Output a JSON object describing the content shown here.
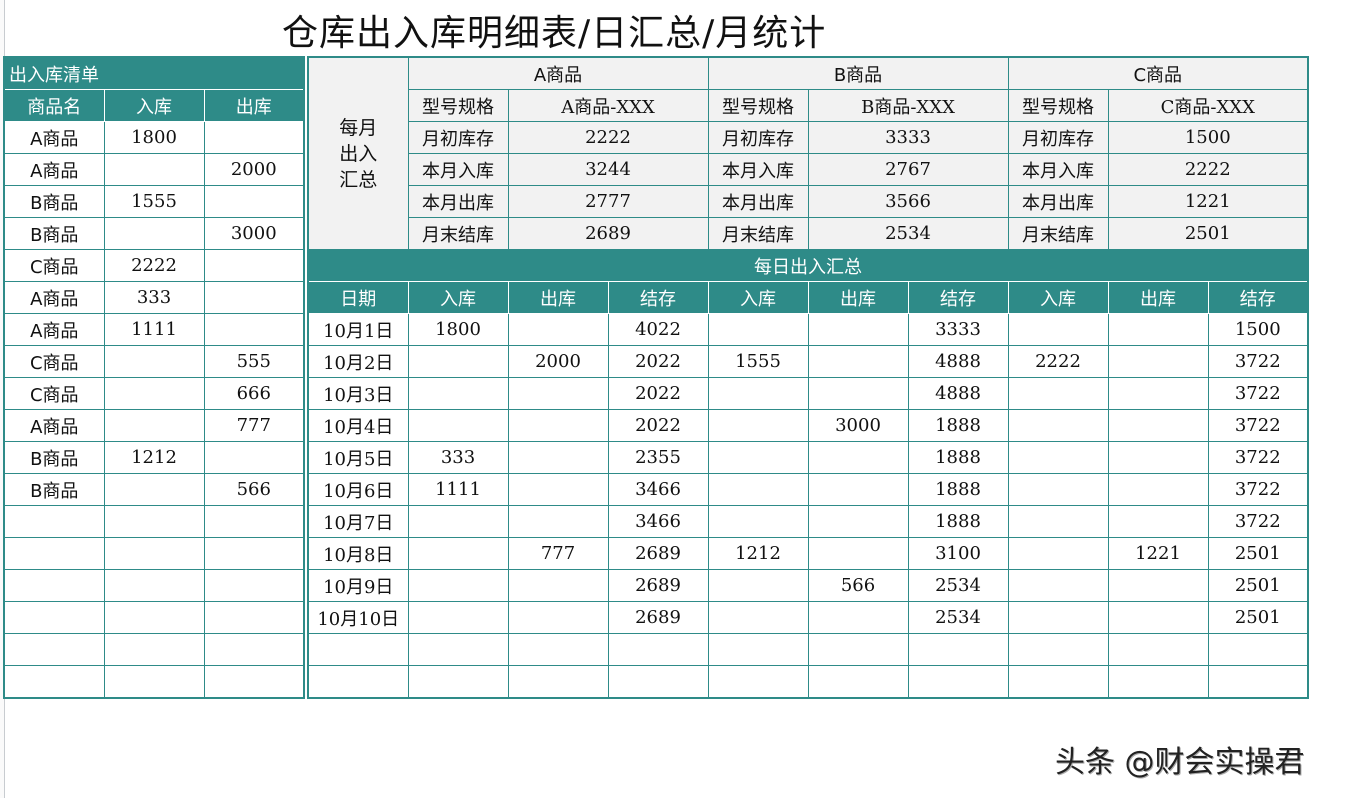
{
  "title": "仓库出入库明细表/日汇总/月统计",
  "colors": {
    "teal": "#2e8b88",
    "gray_bg": "#f2f2f2"
  },
  "left_table": {
    "title": "出入库清单",
    "headers": [
      "商品名",
      "入库",
      "出库"
    ],
    "rows": [
      [
        "A商品",
        "1800",
        ""
      ],
      [
        "A商品",
        "",
        "2000"
      ],
      [
        "B商品",
        "1555",
        ""
      ],
      [
        "B商品",
        "",
        "3000"
      ],
      [
        "C商品",
        "2222",
        ""
      ],
      [
        "A商品",
        "333",
        ""
      ],
      [
        "A商品",
        "1111",
        ""
      ],
      [
        "C商品",
        "",
        "555"
      ],
      [
        "C商品",
        "",
        "666"
      ],
      [
        "A商品",
        "",
        "777"
      ],
      [
        "B商品",
        "1212",
        ""
      ],
      [
        "B商品",
        "",
        "566"
      ],
      [
        "",
        "",
        ""
      ],
      [
        "",
        "",
        ""
      ],
      [
        "",
        "",
        ""
      ],
      [
        "",
        "",
        ""
      ],
      [
        "",
        "",
        ""
      ],
      [
        "",
        "",
        ""
      ]
    ]
  },
  "monthly": {
    "label": "每月出入汇总",
    "products": [
      {
        "name": "A商品",
        "spec_label": "型号规格",
        "spec": "A商品-XXX",
        "rows": [
          [
            "月初库存",
            "2222"
          ],
          [
            "本月入库",
            "3244"
          ],
          [
            "本月出库",
            "2777"
          ],
          [
            "月末结库",
            "2689"
          ]
        ]
      },
      {
        "name": "B商品",
        "spec_label": "型号规格",
        "spec": "B商品-XXX",
        "rows": [
          [
            "月初库存",
            "3333"
          ],
          [
            "本月入库",
            "2767"
          ],
          [
            "本月出库",
            "3566"
          ],
          [
            "月末结库",
            "2534"
          ]
        ]
      },
      {
        "name": "C商品",
        "spec_label": "型号规格",
        "spec": "C商品-XXX",
        "rows": [
          [
            "月初库存",
            "1500"
          ],
          [
            "本月入库",
            "2222"
          ],
          [
            "本月出库",
            "1221"
          ],
          [
            "月末结库",
            "2501"
          ]
        ]
      }
    ]
  },
  "daily": {
    "title": "每日出入汇总",
    "headers": [
      "日期",
      "入库",
      "出库",
      "结存",
      "入库",
      "出库",
      "结存",
      "入库",
      "出库",
      "结存"
    ],
    "rows": [
      [
        "10月1日",
        "1800",
        "",
        "4022",
        "",
        "",
        "3333",
        "",
        "",
        "1500"
      ],
      [
        "10月2日",
        "",
        "2000",
        "2022",
        "1555",
        "",
        "4888",
        "2222",
        "",
        "3722"
      ],
      [
        "10月3日",
        "",
        "",
        "2022",
        "",
        "",
        "4888",
        "",
        "",
        "3722"
      ],
      [
        "10月4日",
        "",
        "",
        "2022",
        "",
        "3000",
        "1888",
        "",
        "",
        "3722"
      ],
      [
        "10月5日",
        "333",
        "",
        "2355",
        "",
        "",
        "1888",
        "",
        "",
        "3722"
      ],
      [
        "10月6日",
        "1111",
        "",
        "3466",
        "",
        "",
        "1888",
        "",
        "",
        "3722"
      ],
      [
        "10月7日",
        "",
        "",
        "3466",
        "",
        "",
        "1888",
        "",
        "",
        "3722"
      ],
      [
        "10月8日",
        "",
        "777",
        "2689",
        "1212",
        "",
        "3100",
        "",
        "1221",
        "2501"
      ],
      [
        "10月9日",
        "",
        "",
        "2689",
        "",
        "566",
        "2534",
        "",
        "",
        "2501"
      ],
      [
        "10月10日",
        "",
        "",
        "2689",
        "",
        "",
        "2534",
        "",
        "",
        "2501"
      ],
      [
        "",
        "",
        "",
        "",
        "",
        "",
        "",
        "",
        "",
        ""
      ],
      [
        "",
        "",
        "",
        "",
        "",
        "",
        "",
        "",
        "",
        ""
      ]
    ]
  },
  "watermark": "头条 @财会实操君"
}
